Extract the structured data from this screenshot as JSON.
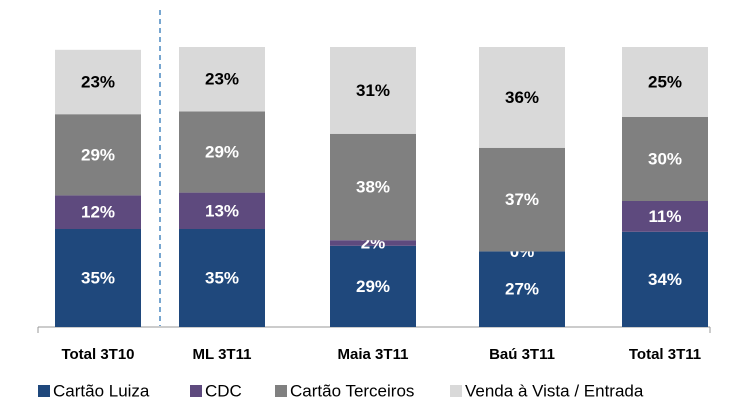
{
  "chart_data": {
    "type": "stacked_bar",
    "categories": [
      "Total 3T10",
      "ML 3T11",
      "Maia 3T11",
      "Baú 3T11",
      "Total 3T11"
    ],
    "series": [
      {
        "name": "Cartão Luiza",
        "color": "#1f487c",
        "values": [
          35,
          35,
          29,
          27,
          34
        ],
        "value_labels": [
          "35%",
          "35%",
          "29%",
          "27%",
          "34%"
        ]
      },
      {
        "name": "CDC",
        "color": "#5e4a7e",
        "values": [
          12,
          13,
          2,
          0,
          11
        ],
        "value_labels": [
          "12%",
          "13%",
          "2%",
          "0%",
          "11%"
        ]
      },
      {
        "name": "Cartão Terceiros",
        "color": "#808080",
        "values": [
          29,
          29,
          38,
          37,
          30
        ],
        "value_labels": [
          "29%",
          "29%",
          "38%",
          "37%",
          "30%"
        ]
      },
      {
        "name": "Venda à Vista / Entrada",
        "color": "#d9d9d9",
        "values": [
          23,
          23,
          31,
          36,
          25
        ],
        "value_labels": [
          "23%",
          "23%",
          "31%",
          "36%",
          "25%"
        ]
      }
    ],
    "ylim": [
      0,
      100
    ]
  }
}
